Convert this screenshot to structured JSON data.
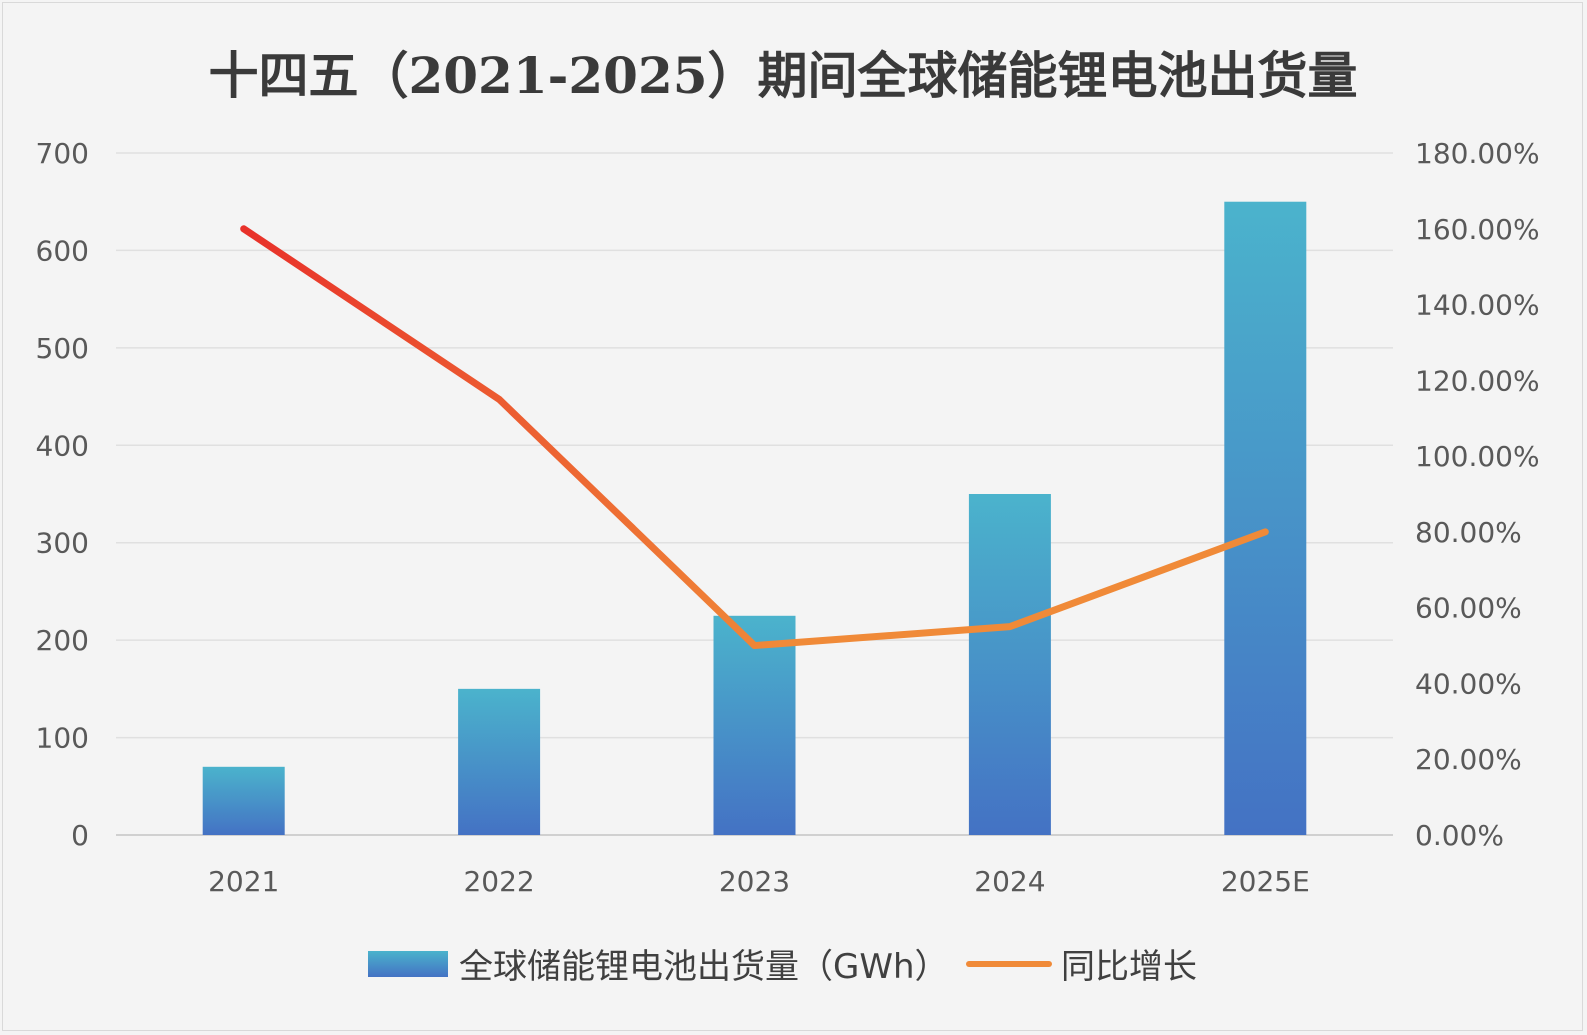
{
  "chart_data": {
    "type": "bar",
    "title": "十四五（2021-2025）期间全球储能锂电池出货量",
    "categories": [
      "2021",
      "2022",
      "2023",
      "2024",
      "2025E"
    ],
    "series": [
      {
        "name": "全球储能锂电池出货量（GWh）",
        "type": "bar",
        "axis": "left",
        "values": [
          70,
          150,
          225,
          350,
          650
        ]
      },
      {
        "name": "同比增长",
        "type": "line",
        "axis": "right",
        "values": [
          1.6,
          1.15,
          0.5,
          0.55,
          0.8
        ]
      }
    ],
    "y_left": {
      "ylim": [
        0,
        700
      ],
      "ticks": [
        0,
        100,
        200,
        300,
        400,
        500,
        600,
        700
      ],
      "tick_labels": [
        "0",
        "100",
        "200",
        "300",
        "400",
        "500",
        "600",
        "700"
      ]
    },
    "y_right": {
      "ylim": [
        0,
        1.8
      ],
      "ticks": [
        0,
        0.2,
        0.4,
        0.6,
        0.8,
        1.0,
        1.2,
        1.4,
        1.6,
        1.8
      ],
      "tick_labels": [
        "0.00%",
        "20.00%",
        "40.00%",
        "60.00%",
        "80.00%",
        "100.00%",
        "120.00%",
        "140.00%",
        "160.00%",
        "180.00%"
      ]
    },
    "grid": true,
    "legend": "bottom"
  },
  "colors": {
    "bar_top": "#4bb3cc",
    "bar_bottom": "#4472c4",
    "line_start": "#e8302a",
    "line_end": "#f08a38",
    "grid": "#e0e0e0",
    "axis": "#d0d0d0"
  }
}
